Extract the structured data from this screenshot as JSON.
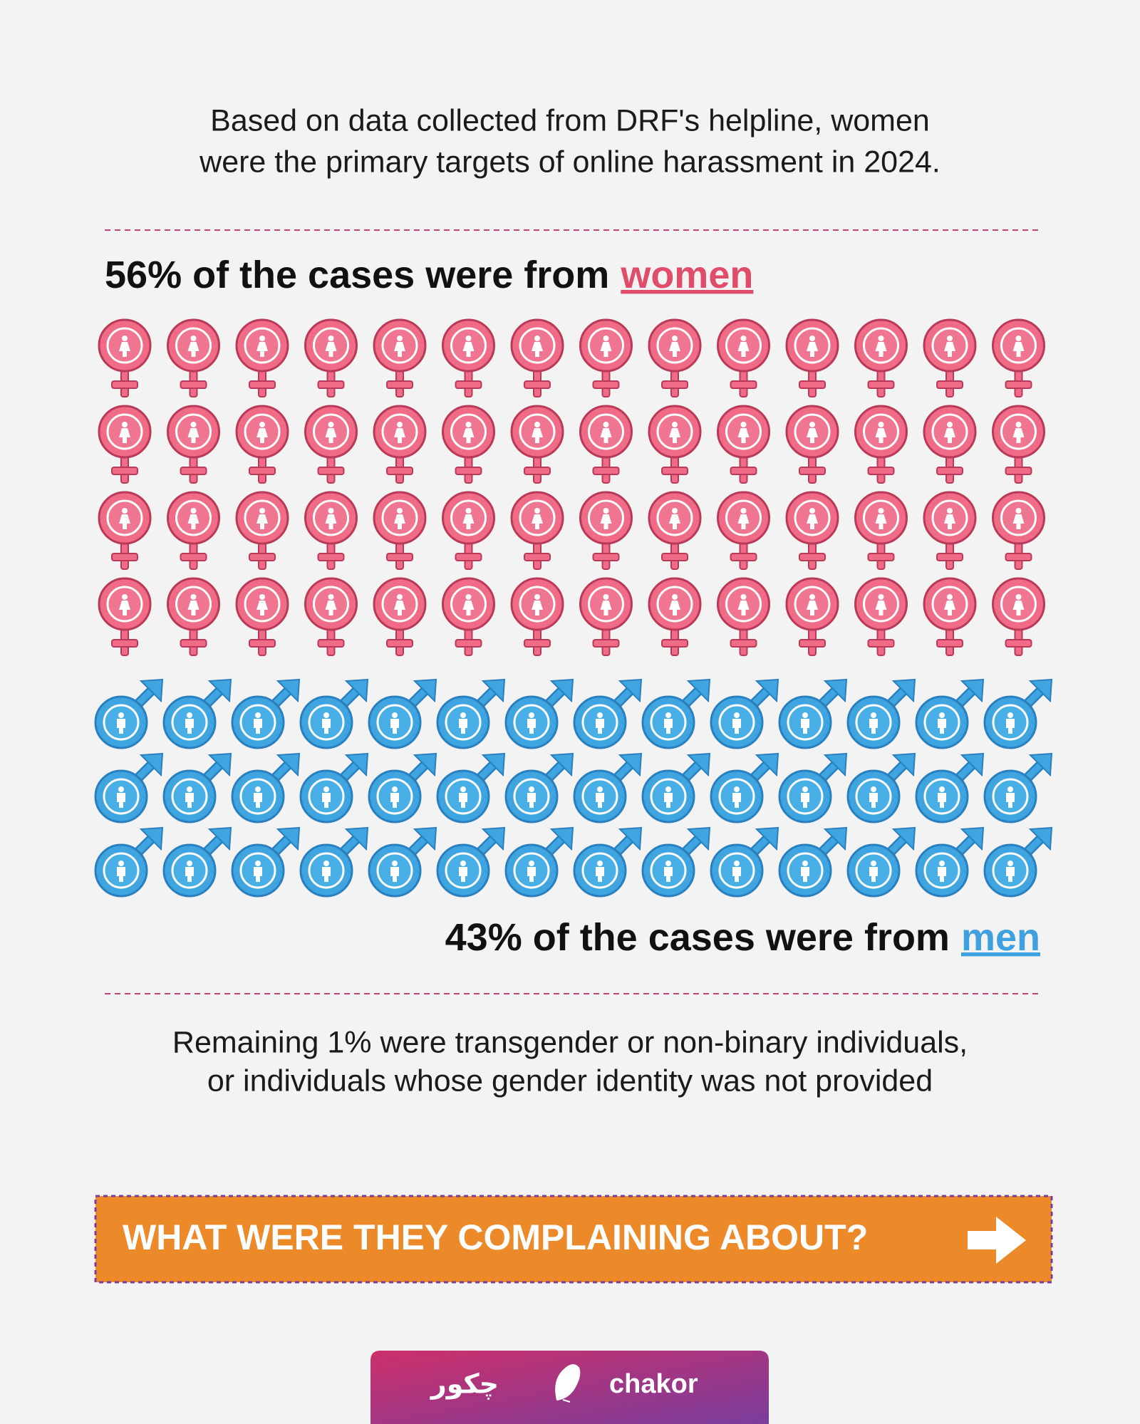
{
  "intro": [
    "Based on data collected from DRF's helpline, women",
    "were the primary targets of online harassment in 2024."
  ],
  "women": {
    "lead": "56% of the cases were from",
    "highlight": "women"
  },
  "men": {
    "lead": "43% of the cases were from",
    "highlight": "men"
  },
  "remaining": [
    "Remaining 1% were transgender or non-binary individuals,",
    "or individuals whose gender identity was not provided"
  ],
  "button": "WHAT WERE THEY COMPLAINING ABOUT?",
  "footer": {
    "urdu": "چکور",
    "brand": "chakor"
  }
}
